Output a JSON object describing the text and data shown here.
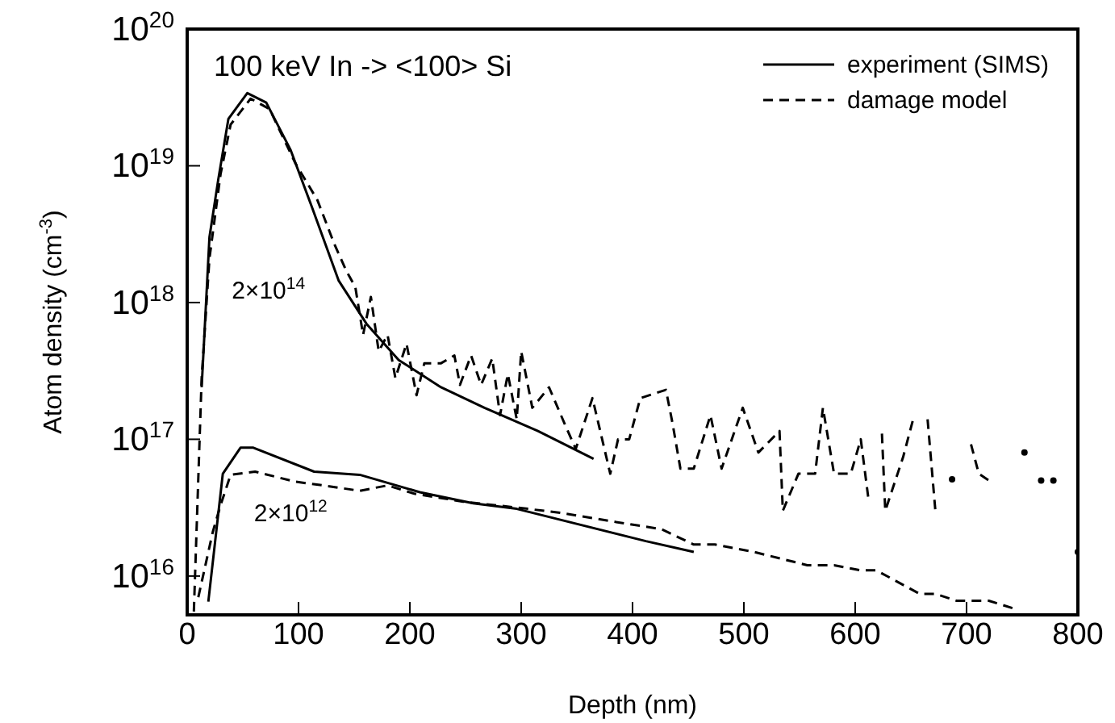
{
  "chart_data": {
    "type": "line",
    "xlabel": "Depth (nm)",
    "ylabel": "Atom density (cm$^{-3}$)",
    "log": "y",
    "legend": "top right",
    "xlim": [
      0,
      800
    ],
    "xticks": [
      0,
      100,
      200,
      300,
      400,
      500,
      600,
      700,
      800
    ],
    "ylim": [
      5200000000000000.0,
      1e+20
    ],
    "yticks": [
      {
        "value": 1e+16,
        "label": "10$^{16}$"
      },
      {
        "value": 1e+17,
        "label": "10$^{17}$"
      },
      {
        "value": 1e+18,
        "label": "10$^{18}$"
      },
      {
        "value": 1e+19,
        "label": "10$^{19}$"
      },
      {
        "value": 1e+20,
        "label": "10$^{20}$"
      }
    ],
    "annotations": [
      "100 keV In -> <100> Si",
      "2×10$^{14}$",
      "2×10$^{12}$"
    ],
    "series": [
      {
        "name": "experiment (SIMS)",
        "color": "#000000",
        "line_style": "solid",
        "x": [
          13,
          20,
          28,
          37,
          54,
          71,
          93,
          112,
          136,
          161,
          190,
          228,
          267,
          315,
          365
        ],
        "values": [
          2.4e+17,
          3e+18,
          8e+18,
          2.2e+19,
          3.4e+19,
          2.9e+19,
          1.3e+19,
          5e+18,
          1.45e+18,
          7e+17,
          3.8e+17,
          2.4e+17,
          1.7e+17,
          1.15e+17,
          7.2e+16
        ]
      },
      {
        "name": "damage model",
        "color": "#000000",
        "line_style": "dashed",
        "x": [
          6,
          13,
          20,
          30,
          39,
          57,
          74,
          97,
          117,
          132,
          143,
          151,
          158,
          165,
          172,
          180,
          187,
          197,
          206,
          213,
          228,
          240,
          245,
          255,
          264,
          274,
          281,
          288,
          296,
          300,
          310,
          325,
          339,
          349,
          364,
          380,
          387,
          397,
          407,
          430,
          436,
          443,
          455,
          470,
          480,
          499,
          513,
          532,
          535,
          549,
          564,
          571,
          581,
          596,
          605,
          612,
          614,
          624,
          627,
          643,
          653,
          658,
          665,
          672,
          677,
          687,
          697,
          704,
          711,
          720,
          730,
          752,
          759,
          767,
          777,
          778,
          784,
          800
        ],
        "values": [
          5500000000000000.0,
          2.8e+17,
          2.1e+18,
          8.7e+18,
          2e+19,
          3.1e+19,
          2.6e+19,
          1.05e+19,
          5.6e+18,
          2.7e+18,
          1.7e+18,
          1.3e+18,
          5.8e+17,
          1.1e+18,
          4.4e+17,
          5.8e+17,
          2.8e+17,
          5e+17,
          2.1e+17,
          3.6e+17,
          3.6e+17,
          4.1e+17,
          2.5e+17,
          4.1e+17,
          2.5e+17,
          3.9e+17,
          1.5e+17,
          3e+17,
          1.4e+17,
          4.4e+17,
          1.7e+17,
          2.4e+17,
          1.3e+17,
          8.5e+16,
          2e+17,
          5.6e+16,
          1e+17,
          1e+17,
          2e+17,
          2.3e+17,
          1.3e+17,
          6.1e+16,
          6.1e+16,
          1.5e+17,
          6.1e+16,
          1.7e+17,
          8e+16,
          1.15e+17,
          3e+16,
          5.6e+16,
          5.6e+16,
          1.7e+17,
          5.6e+16,
          5.6e+16,
          1e+17,
          3.6e+16,
          null,
          1.1e+17,
          3e+16,
          7.4e+16,
          1.5e+17,
          null,
          1.4e+17,
          3e+16,
          null,
          5.1e+16,
          null,
          9.2e+16,
          5.6e+16,
          5e+16,
          null,
          8e+16,
          null,
          5e+16,
          null,
          5e+16,
          null,
          1.5e+16
        ]
      },
      {
        "color": "#000000",
        "line_style": "solid",
        "x": [
          19,
          32,
          48,
          59,
          114,
          155,
          209,
          257,
          296,
          412,
          455
        ],
        "values": [
          6500000000000000.0,
          5.6e+16,
          8.7e+16,
          8.7e+16,
          5.8e+16,
          5.5e+16,
          4.1e+16,
          3.4e+16,
          3.1e+16,
          1.8e+16,
          1.5e+16
        ]
      },
      {
        "color": "#000000",
        "line_style": "dashed",
        "x": [
          10,
          23,
          30,
          39,
          61,
          97,
          122,
          155,
          180,
          204,
          248,
          306,
          335,
          383,
          426,
          455,
          474,
          509,
          557,
          581,
          605,
          619,
          658,
          672,
          691,
          720,
          745
        ],
        "values": [
          7000000000000000.0,
          2.1e+16,
          3.3e+16,
          5.5e+16,
          5.8e+16,
          4.9e+16,
          4.6e+16,
          4.2e+16,
          4.6e+16,
          4e+16,
          3.5e+16,
          3.1e+16,
          2.9e+16,
          2.5e+16,
          2.2e+16,
          1.7e+16,
          1.7e+16,
          1.5e+16,
          1.2e+16,
          1.2e+16,
          1.1e+16,
          1.1e+16,
          7400000000000000.0,
          7400000000000000.0,
          6600000000000000.0,
          6600000000000000.0,
          5700000000000000.0
        ]
      }
    ]
  }
}
